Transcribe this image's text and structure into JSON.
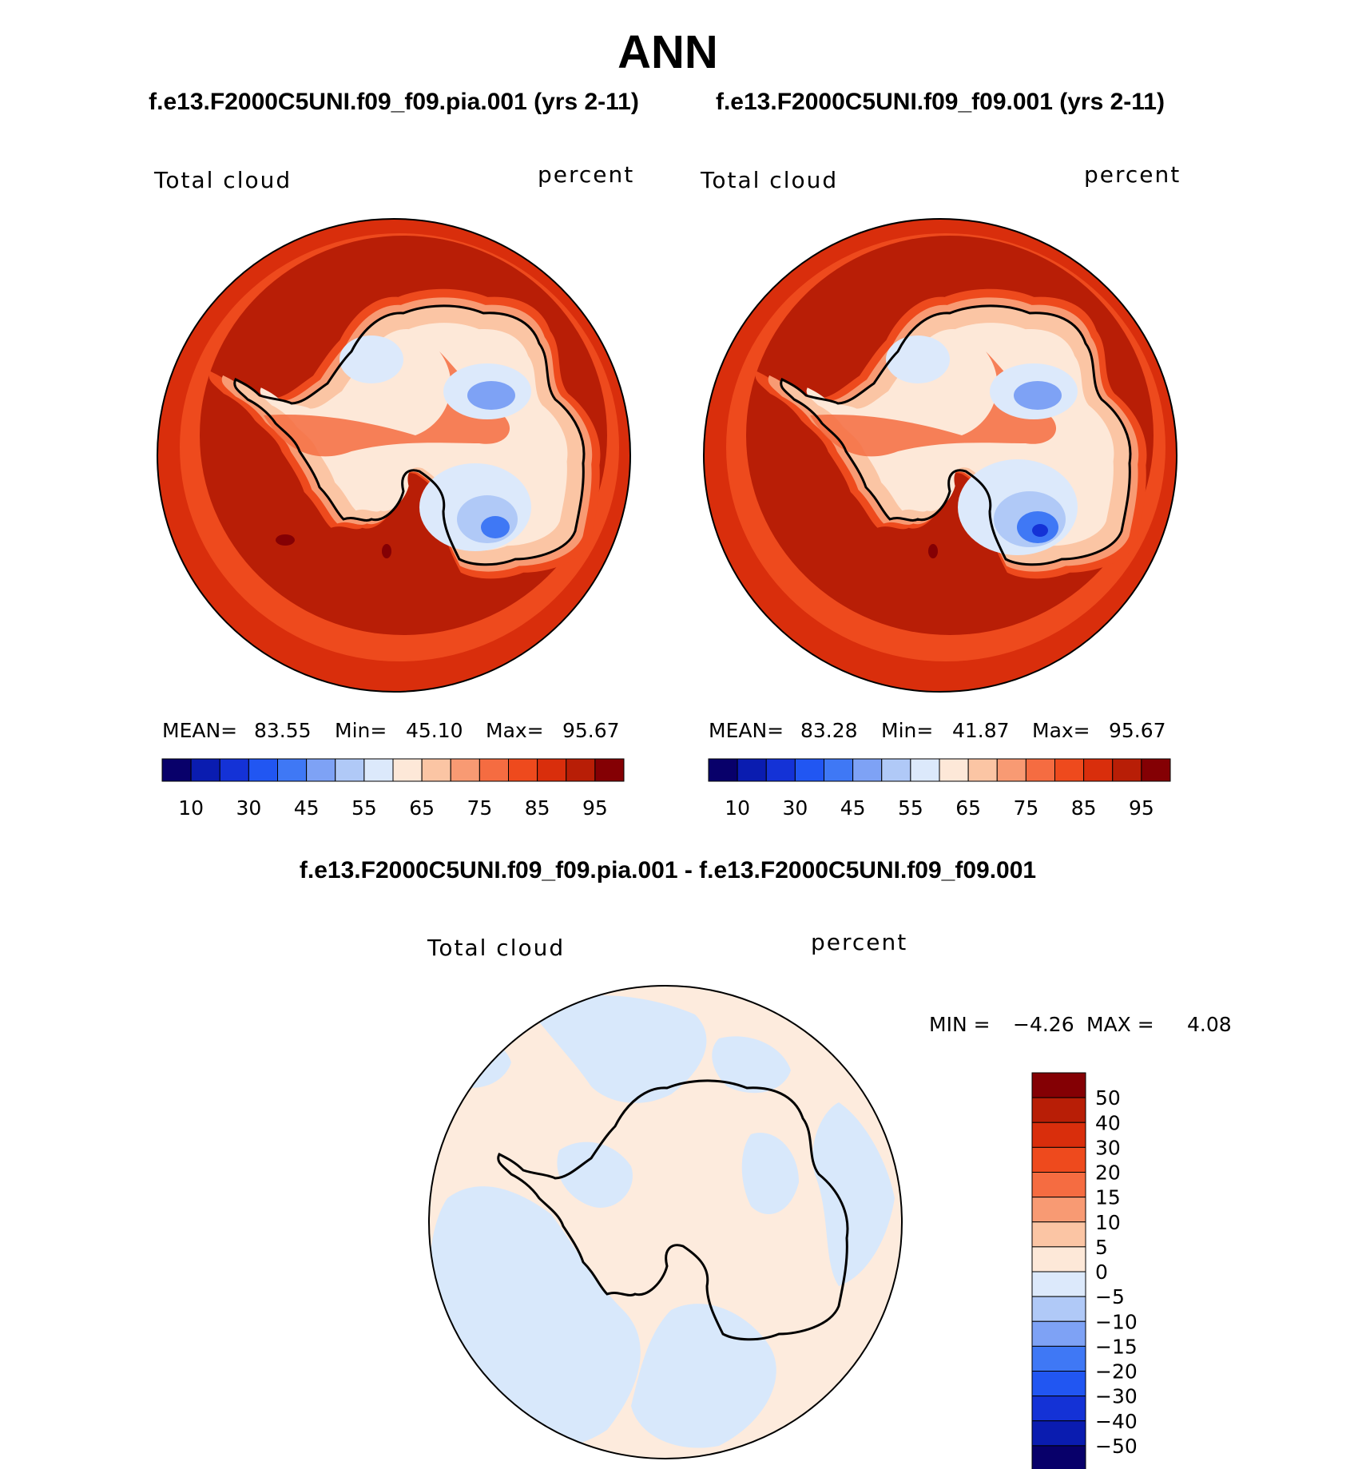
{
  "page": {
    "title": "ANN"
  },
  "panels": {
    "left": {
      "case_title": "f.e13.F2000C5UNI.f09_f09.pia.001 (yrs 2-11)",
      "variable": "Total cloud",
      "units": "percent",
      "stats": {
        "mean_label": "MEAN=",
        "mean_value": "83.55",
        "min_label": "Min=",
        "min_value": "45.10",
        "max_label": "Max=",
        "max_value": "95.67"
      }
    },
    "right": {
      "case_title": "f.e13.F2000C5UNI.f09_f09.001 (yrs 2-11)",
      "variable": "Total cloud",
      "units": "percent",
      "stats": {
        "mean_label": "MEAN=",
        "mean_value": "83.28",
        "min_label": "Min=",
        "min_value": "41.87",
        "max_label": "Max=",
        "max_value": "95.67"
      }
    },
    "diff": {
      "title": "f.e13.F2000C5UNI.f09_f09.pia.001 - f.e13.F2000C5UNI.f09_f09.001",
      "variable": "Total cloud",
      "units": "percent",
      "stats": {
        "min_label": "MIN =",
        "min_value": "−4.26",
        "max_label": "MAX =",
        "max_value": "4.08"
      }
    }
  },
  "colorbars": {
    "abs": {
      "orientation": "horizontal",
      "colors": [
        "#08006a",
        "#0a1cb0",
        "#1432d6",
        "#2156f2",
        "#3f78f5",
        "#7ea2f5",
        "#b0c9f7",
        "#dce9fb",
        "#fde8d8",
        "#fbc5a4",
        "#f89a73",
        "#f56c41",
        "#ee4a1d",
        "#d92e0c",
        "#b81e06",
        "#840004"
      ],
      "tick_labels": [
        "10",
        "30",
        "45",
        "55",
        "65",
        "75",
        "85",
        "95"
      ]
    },
    "diff": {
      "orientation": "vertical",
      "colors_top_to_bottom": [
        "#840004",
        "#b81e06",
        "#d92e0c",
        "#ee4a1d",
        "#f56c41",
        "#f89a73",
        "#fbc5a4",
        "#fde8d8",
        "#dce9fb",
        "#b0c9f7",
        "#7ea2f5",
        "#3f78f5",
        "#2156f2",
        "#1432d6",
        "#0a1cb0",
        "#08006a"
      ],
      "tick_labels": [
        "50",
        "40",
        "30",
        "20",
        "15",
        "10",
        "5",
        "0",
        "−5",
        "−10",
        "−15",
        "−20",
        "−30",
        "−40",
        "−50"
      ]
    }
  },
  "map_colors": {
    "ocean_outer": "#d92e0c",
    "ocean_inner": "#b81e06",
    "max_spot": "#840004",
    "coast_ring_1": "#ee4a1d",
    "coast_ring_2": "#f89a73",
    "coast_ring_3": "#fbc5a4",
    "interior": "#fde8d8",
    "low_1": "#dce9fb",
    "low_2": "#b0c9f7",
    "low_3": "#7ea2f5",
    "low_4": "#3f78f5",
    "diff_positive": "#fdebdd",
    "diff_negative": "#d8e8fb"
  }
}
